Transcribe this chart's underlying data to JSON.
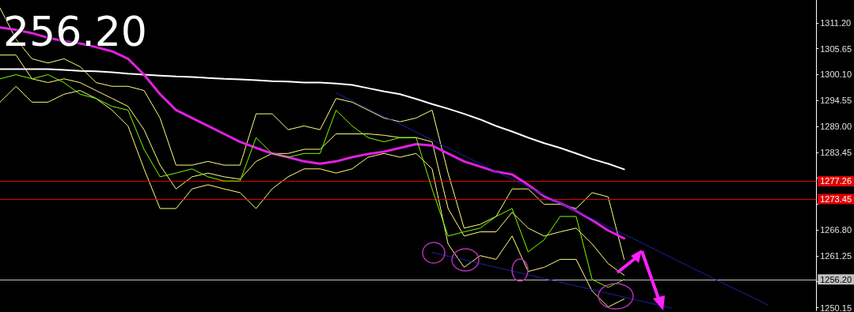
{
  "chart_data": {
    "type": "line",
    "ylim": [
      1249.5,
      1316.1
    ],
    "yticks": [
      {
        "value": 1311.2,
        "label": "1311.20"
      },
      {
        "value": 1305.65,
        "label": "1305.65"
      },
      {
        "value": 1300.1,
        "label": "1300.10"
      },
      {
        "value": 1294.55,
        "label": "1294.55"
      },
      {
        "value": 1289,
        "label": "1289.00"
      },
      {
        "value": 1283.45,
        "label": "1283.45"
      },
      {
        "value": 1277.9,
        "label": null
      },
      {
        "value": 1272.35,
        "label": null
      },
      {
        "value": 1266.8,
        "label": "1266.80"
      },
      {
        "value": 1261.25,
        "label": "1261.25"
      },
      {
        "value": 1255.7,
        "label": null
      },
      {
        "value": 1250.15,
        "label": "1250.15"
      }
    ],
    "grid": false,
    "marker": "none",
    "line_style": "solid",
    "annotations": [
      "256.20"
    ],
    "categories": [
      null,
      null,
      null,
      null,
      null,
      null,
      null,
      null,
      null,
      null,
      null,
      null,
      null,
      null,
      null,
      null,
      null,
      null,
      null,
      null,
      null,
      null,
      null,
      null,
      null,
      null,
      null,
      null,
      null,
      null,
      null,
      null,
      null,
      null,
      null,
      null,
      null,
      null,
      null,
      null,
      null,
      null,
      null,
      null,
      null,
      null,
      null,
      null,
      null,
      null,
      null,
      null
    ],
    "ref_lines": [
      {
        "axis": "y",
        "value": 1277.26,
        "label": "1277.26",
        "color": "#e00000"
      },
      {
        "axis": "y",
        "value": 1273.45,
        "label": "1273.45",
        "color": "#e00000"
      },
      {
        "axis": "y",
        "value": 1256.2,
        "label": "1256.20",
        "color": "#c0c0c0"
      }
    ],
    "series": [
      {
        "color": "#ffff80",
        "values": [
          1314.4,
          1307.7,
          1303.5,
          1302.6,
          1303.5,
          1301.8,
          1298.4,
          1297.6,
          1297.6,
          1296.7,
          1290.8,
          1280.7,
          1280.7,
          1281.5,
          1280.7,
          1280.7,
          1291.7,
          1291.7,
          1288.3,
          1289.1,
          1288.3,
          1295.0,
          1294.2,
          1292.5,
          1290.8,
          1290.0,
          1290.8,
          1292.5,
          1279.0,
          1267.2,
          1268.0,
          1269.7,
          1275.6,
          1275.6,
          1272.3,
          1272.3,
          1271.4,
          1274.8,
          1273.9,
          1260.5,
          null,
          null,
          null,
          null,
          null,
          null,
          null,
          null,
          null,
          null,
          null,
          null
        ]
      },
      {
        "color": "#ffff80",
        "values": [
          1304.3,
          1304.3,
          1299.2,
          1298.4,
          1299.2,
          1298.4,
          1296.7,
          1295.0,
          1293.3,
          1288.3,
          1280.7,
          1275.6,
          1278.2,
          1279.0,
          1278.2,
          1277.7,
          1281.5,
          1283.2,
          1283.2,
          1284.1,
          1284.1,
          1287.4,
          1287.4,
          1287.4,
          1287.1,
          1286.6,
          1286.6,
          1285.7,
          1271.4,
          1265.5,
          1266.4,
          1266.4,
          1270.6,
          1267.2,
          1265.5,
          1266.4,
          1267.2,
          1263.8,
          1259.6,
          1257.1,
          null,
          null,
          null,
          null,
          null,
          null,
          null,
          null,
          null,
          null,
          null,
          null
        ]
      },
      {
        "color": "#ffff80",
        "values": [
          1294.2,
          1297.6,
          1294.2,
          1294.2,
          1295.9,
          1296.7,
          1295.0,
          1292.5,
          1289.1,
          1279.9,
          1271.4,
          1271.4,
          1275.6,
          1276.5,
          1275.6,
          1274.8,
          1271.4,
          1275.6,
          1278.2,
          1279.9,
          1279.9,
          1279.0,
          1279.9,
          1282.4,
          1283.2,
          1282.4,
          1283.2,
          1279.9,
          1263.8,
          1258.8,
          1261.3,
          1260.5,
          1265.5,
          1257.9,
          1258.8,
          1260.5,
          1260.5,
          1253.7,
          1250.3,
          1252.0,
          null,
          null,
          null,
          null,
          null,
          null,
          null,
          null,
          null,
          null,
          null,
          null
        ]
      },
      {
        "color": "#7cfc00",
        "values": [
          1299.2,
          1300.1,
          1299.2,
          1300.1,
          1298.4,
          1295.9,
          1295.0,
          1293.3,
          1292.5,
          1284.1,
          1278.2,
          1279.0,
          1279.9,
          1278.2,
          1277.3,
          1277.3,
          1286.6,
          1283.2,
          1282.4,
          1283.2,
          1283.2,
          1292.5,
          1289.1,
          1286.6,
          1285.7,
          1286.6,
          1286.6,
          1275.6,
          1265.5,
          1266.4,
          1267.2,
          1269.7,
          1271.4,
          1262.1,
          1264.7,
          1269.7,
          1269.7,
          1256.2,
          1254.5,
          1256.2,
          null,
          null,
          null,
          null,
          null,
          null,
          null,
          null,
          null,
          null,
          null,
          null
        ]
      },
      {
        "color": "#ffffff",
        "values": [
          1301.3,
          1301.3,
          1301.3,
          1301.3,
          1301.1,
          1300.9,
          1300.8,
          1300.6,
          1300.3,
          1300.1,
          1299.9,
          1299.7,
          1299.6,
          1299.4,
          1299.2,
          1299.1,
          1298.9,
          1298.7,
          1298.6,
          1298.4,
          1298.4,
          1298.2,
          1297.9,
          1297.2,
          1296.5,
          1295.9,
          1294.9,
          1293.8,
          1292.8,
          1291.7,
          1290.5,
          1289.1,
          1287.9,
          1286.6,
          1285.4,
          1284.4,
          1283.2,
          1282.0,
          1281.0,
          1279.8,
          null,
          null,
          null,
          null,
          null,
          null,
          null,
          null,
          null,
          null,
          null,
          null
        ]
      },
      {
        "color": "#e020e0",
        "values": [
          1310.2,
          1309.7,
          1309.0,
          1308.0,
          1307.3,
          1306.8,
          1306.0,
          1305.1,
          1303.5,
          1300.1,
          1295.9,
          1292.5,
          1290.8,
          1289.1,
          1287.4,
          1285.7,
          1284.4,
          1283.2,
          1282.4,
          1281.5,
          1281.0,
          1281.5,
          1282.4,
          1283.1,
          1283.6,
          1284.4,
          1285.2,
          1284.9,
          1283.2,
          1281.5,
          1280.4,
          1279.3,
          1278.7,
          1276.5,
          1274.0,
          1272.6,
          1270.9,
          1268.9,
          1266.7,
          1265.0,
          null,
          null,
          null,
          null,
          null,
          null,
          null,
          null,
          null,
          null,
          null,
          null
        ]
      },
      {
        "color": "#2020a8",
        "values": [
          null,
          null,
          null,
          null,
          null,
          null,
          null,
          null,
          null,
          null,
          null,
          null,
          null,
          null,
          null,
          null,
          null,
          null,
          null,
          null,
          null,
          1296.2,
          1294.5,
          1292.8,
          1291.1,
          1289.5,
          1287.8,
          1286.1,
          1284.4,
          1282.7,
          1281.0,
          1279.3,
          1277.7,
          1276.0,
          1274.3,
          1272.6,
          1270.9,
          1269.2,
          1267.5,
          1265.9,
          1264.2,
          1262.5,
          1260.8,
          1259.1,
          1257.4,
          1255.7,
          1254.0,
          1252.4,
          1250.7,
          null,
          null,
          null
        ]
      },
      {
        "color": "#2020a8",
        "values": [
          null,
          null,
          null,
          null,
          null,
          null,
          null,
          null,
          null,
          null,
          null,
          null,
          null,
          null,
          null,
          null,
          null,
          null,
          null,
          null,
          null,
          null,
          null,
          null,
          null,
          null,
          null,
          1262.0,
          1261.2,
          1260.4,
          1259.6,
          1258.8,
          1258.0,
          1257.2,
          1256.4,
          1255.6,
          1254.8,
          1254.0,
          1253.2,
          1252.4,
          1251.6,
          1250.8,
          1250.0,
          null,
          null,
          null,
          null,
          null,
          null,
          null,
          null,
          null
        ]
      }
    ]
  }
}
